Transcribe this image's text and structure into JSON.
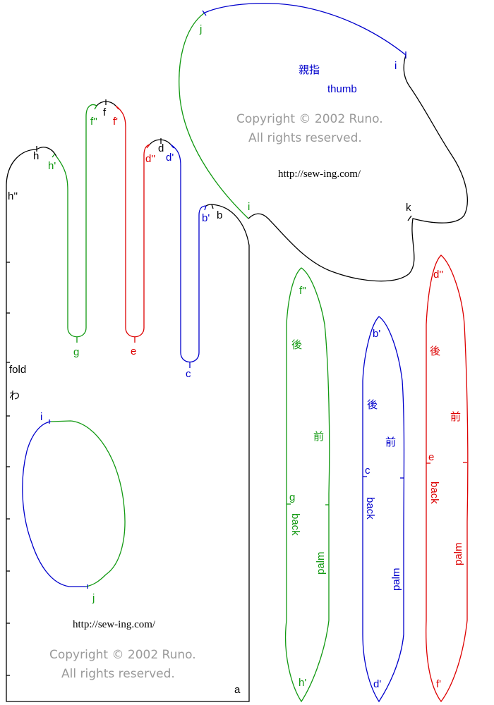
{
  "colors": {
    "black": "#000000",
    "green": "#119911",
    "red": "#dd0000",
    "blue": "#0000cc",
    "gray": "#9a9a9a"
  },
  "hand": {
    "points": {
      "h": "h",
      "h1": "h'",
      "h2": "h''",
      "f": "f",
      "f1": "f'",
      "f2": "f''",
      "d": "d",
      "d1": "d'",
      "d2": "d''",
      "b": "b",
      "b1": "b'",
      "g": "g",
      "e": "e",
      "c": "c",
      "a": "a"
    },
    "fold_en": "fold",
    "fold_jp": "わ",
    "hole_i": "i",
    "hole_j": "j",
    "url": "http://sew-ing.com/",
    "copyright_line1": "Copyright © 2002 Runo.",
    "copyright_line2": "All rights reserved."
  },
  "thumb": {
    "label_jp": "親指",
    "label_en": "thumb",
    "pt_j": "j",
    "pt_i_top": "i",
    "pt_i_left": "i",
    "pt_k": "k",
    "copyright_line1": "Copyright © 2002 Runo.",
    "copyright_line2": "All rights reserved.",
    "url": "http://sew-ing.com/"
  },
  "gusset_green": {
    "top": "f''",
    "bottom": "h'",
    "mid": "g",
    "back_jp": "後",
    "front_jp": "前",
    "back": "back",
    "palm": "palm"
  },
  "gusset_blue": {
    "top": "b'",
    "bottom": "d'",
    "mid": "c",
    "back_jp": "後",
    "front_jp": "前",
    "back": "back",
    "palm": "palm"
  },
  "gusset_red": {
    "top": "d''",
    "bottom": "f'",
    "mid": "e",
    "back_jp": "後",
    "front_jp": "前",
    "back": "back",
    "palm": "palm"
  }
}
